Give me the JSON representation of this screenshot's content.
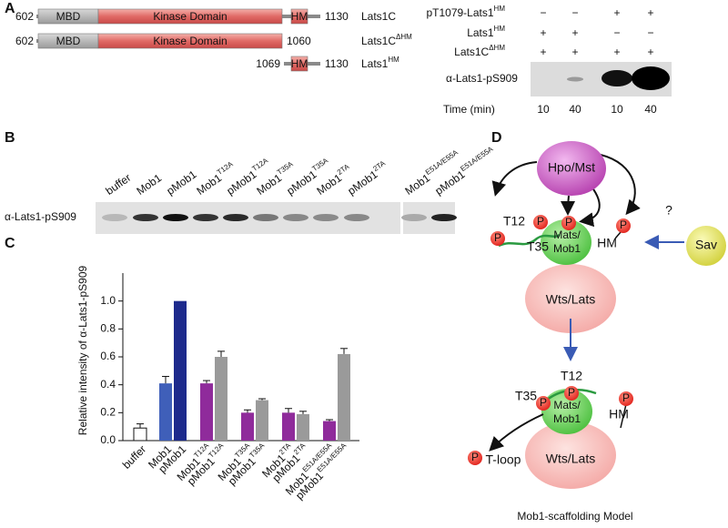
{
  "panel_labels": [
    "A",
    "B",
    "C",
    "D"
  ],
  "panel_a": {
    "constructs": [
      {
        "start": "602",
        "domains": [
          "MBD",
          "Kinase Domain",
          "HM"
        ],
        "end": "1130",
        "name": "Lats1C"
      },
      {
        "start": "602",
        "domains": [
          "MBD",
          "Kinase Domain"
        ],
        "end": "1060",
        "name": "Lats1C",
        "sup": "ΔHM"
      },
      {
        "start": "1069",
        "domains": [
          "HM"
        ],
        "end": "1130",
        "name": "Lats1",
        "sup": "HM"
      }
    ],
    "conditions": [
      {
        "label": "pT1079-Lats1",
        "sup": "HM",
        "marks": [
          "−",
          "−",
          "+",
          "+"
        ]
      },
      {
        "label": "Lats1",
        "sup": "HM",
        "marks": [
          "+",
          "+",
          "−",
          "−"
        ]
      },
      {
        "label": "Lats1C",
        "sup": "ΔHM",
        "marks": [
          "+",
          "+",
          "+",
          "+"
        ]
      }
    ],
    "blot_label": "α-Lats1-pS909",
    "time_label": "Time (min)",
    "times": [
      "10",
      "40",
      "10",
      "40"
    ]
  },
  "panel_b": {
    "lanes": [
      {
        "text": "buffer"
      },
      {
        "text": "Mob1"
      },
      {
        "text": "pMob1"
      },
      {
        "text": "Mob1",
        "sup": "T12A"
      },
      {
        "text": "pMob1",
        "sup": "T12A"
      },
      {
        "text": "Mob1",
        "sup": "T35A"
      },
      {
        "text": "pMob1",
        "sup": "T35A"
      },
      {
        "text": "Mob1",
        "sup": "2TA"
      },
      {
        "text": "pMob1",
        "sup": "2TA"
      },
      {
        "text": "Mob1",
        "sup": "E51A/E55A"
      },
      {
        "text": "pMob1",
        "sup": "E51A/E55A"
      }
    ],
    "blot_label": "α-Lats1-pS909"
  },
  "chart_data": {
    "type": "bar",
    "y_label": "Relative intensity of α-Lats1-pS909",
    "categories": [
      "buffer",
      "Mob1",
      "pMob1",
      "Mob1",
      "pMob1",
      "Mob1",
      "pMob1",
      "Mob1",
      "pMob1",
      "Mob1",
      "pMob1"
    ],
    "category_superscripts": [
      null,
      null,
      null,
      "T12A",
      "T12A",
      "T35A",
      "T35A",
      "2TA",
      "2TA",
      "E51A/E55A",
      "E51A/E55A"
    ],
    "values": [
      0.09,
      0.41,
      1.0,
      0.41,
      0.6,
      0.2,
      0.29,
      0.2,
      0.19,
      0.14,
      0.62
    ],
    "errors": [
      0.03,
      0.05,
      0,
      0.02,
      0.04,
      0.02,
      0.01,
      0.03,
      0.02,
      0.01,
      0.04
    ],
    "colors": [
      "#ffffff",
      "#3f5fb9",
      "#1d2a8c",
      "#8f2b9b",
      "#9a9a9a",
      "#8f2b9b",
      "#9a9a9a",
      "#8f2b9b",
      "#9a9a9a",
      "#8f2b9b",
      "#9a9a9a"
    ],
    "ylim": [
      0,
      1.2
    ],
    "yticks": [
      {
        "value": 0,
        "label": "0.0"
      },
      {
        "value": 0.2,
        "label": "0.2"
      },
      {
        "value": 0.4,
        "label": "0.4"
      },
      {
        "value": 0.6,
        "label": "0.6"
      },
      {
        "value": 0.8,
        "label": "0.8"
      },
      {
        "value": 1,
        "label": "1.0"
      }
    ]
  },
  "panel_d": {
    "kinase": "Hpo/Mst",
    "sav": "Sav",
    "lats": "Wts/Lats",
    "mob_line1": "Mats/",
    "mob_line2": "Mob1",
    "phospho": "P",
    "t12": "T12",
    "t35": "T35",
    "hm": "HM",
    "question": "?",
    "tloop": "T-loop",
    "caption": "Mob1-scaffolding Model"
  }
}
